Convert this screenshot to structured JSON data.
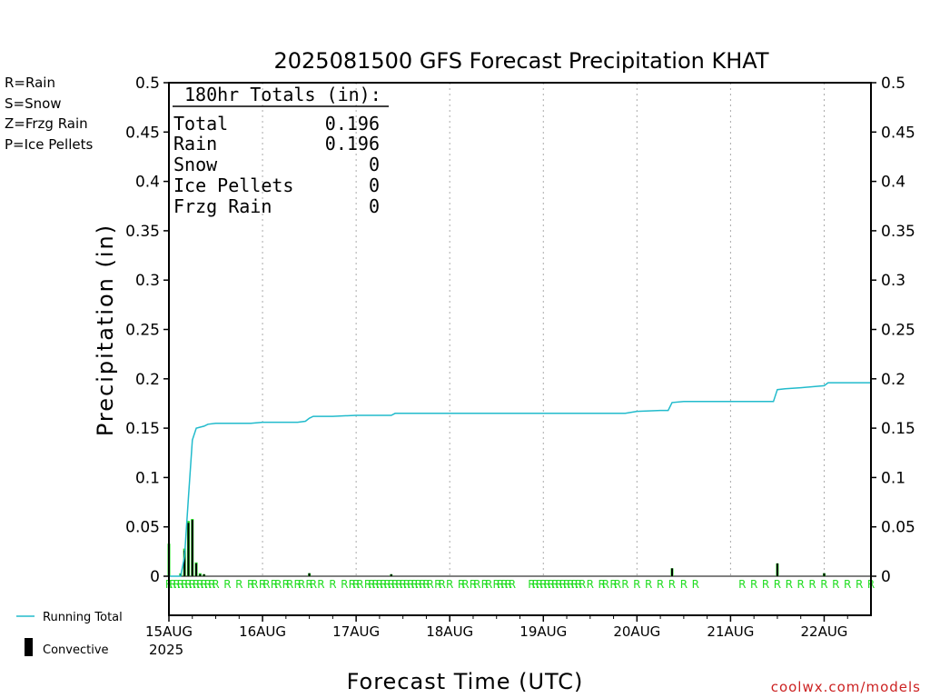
{
  "legend_types": [
    {
      "text": "R=Rain",
      "color": "#22dd22"
    },
    {
      "text": "S=Snow",
      "color": "#3344ff"
    },
    {
      "text": "Z=Frzg Rain",
      "color": "#f08a30"
    },
    {
      "text": "P=Ice Pellets",
      "color": "#ee22aa"
    }
  ],
  "legend_lines": {
    "running_total": "Running Total",
    "convective": "Convective",
    "running_total_color": "#22bbcc",
    "convective_color": "#000000"
  },
  "credit": "coolwx.com/models",
  "year_label": "2025",
  "totals_box": {
    "header": "180hr Totals (in):",
    "rows": [
      {
        "label": "Total",
        "value": "0.196"
      },
      {
        "label": "Rain",
        "value": "0.196"
      },
      {
        "label": "Snow",
        "value": "0"
      },
      {
        "label": "Ice Pellets",
        "value": "0"
      },
      {
        "label": "Frzg Rain",
        "value": "0"
      }
    ]
  },
  "chart_data": {
    "type": "bar",
    "title": "2025081500 GFS Forecast Precipitation KHAT",
    "xlabel": "Forecast Time (UTC)",
    "ylabel": "Precipitation (in)",
    "ylim": [
      0,
      0.5
    ],
    "xlim_hours": [
      0,
      180
    ],
    "y_ticks": [
      "0",
      "0.05",
      "0.1",
      "0.15",
      "0.2",
      "0.25",
      "0.3",
      "0.35",
      "0.4",
      "0.45",
      "0.5"
    ],
    "x_ticks": [
      {
        "label": "15AUG",
        "hour": 0
      },
      {
        "label": "16AUG",
        "hour": 24
      },
      {
        "label": "17AUG",
        "hour": 48
      },
      {
        "label": "18AUG",
        "hour": 72
      },
      {
        "label": "19AUG",
        "hour": 96
      },
      {
        "label": "20AUG",
        "hour": 120
      },
      {
        "label": "21AUG",
        "hour": 144
      },
      {
        "label": "22AUG",
        "hour": 168
      }
    ],
    "grid": true,
    "series": [
      {
        "name": "Running Total",
        "type": "line",
        "color": "#22bbcc",
        "x_hours": [
          0,
          3,
          4,
          5,
          6,
          7,
          8,
          9,
          10,
          12,
          15,
          18,
          21,
          24,
          27,
          30,
          33,
          35,
          36,
          37,
          39,
          42,
          48,
          54,
          57,
          58,
          60,
          66,
          72,
          78,
          84,
          96,
          108,
          117,
          120,
          126,
          128,
          129,
          132,
          138,
          144,
          150,
          155,
          156,
          158,
          162,
          165,
          168,
          169,
          174,
          180
        ],
        "values": [
          0.0,
          0.0,
          0.02,
          0.08,
          0.138,
          0.15,
          0.151,
          0.152,
          0.154,
          0.155,
          0.155,
          0.155,
          0.155,
          0.156,
          0.156,
          0.156,
          0.156,
          0.157,
          0.16,
          0.162,
          0.162,
          0.162,
          0.163,
          0.163,
          0.163,
          0.165,
          0.165,
          0.165,
          0.165,
          0.165,
          0.165,
          0.165,
          0.165,
          0.165,
          0.167,
          0.168,
          0.168,
          0.176,
          0.177,
          0.177,
          0.177,
          0.177,
          0.177,
          0.189,
          0.19,
          0.191,
          0.192,
          0.193,
          0.196,
          0.196,
          0.196
        ]
      },
      {
        "name": "Convective",
        "type": "bar",
        "color": "#000000",
        "x_hours": [
          3,
          4,
          5,
          6,
          7,
          8,
          9,
          36,
          57,
          129,
          156,
          168
        ],
        "values": [
          0.002,
          0.026,
          0.054,
          0.057,
          0.013,
          0.002,
          0.002,
          0.003,
          0.002,
          0.008,
          0.013,
          0.003
        ]
      },
      {
        "name": "Rain",
        "type": "bar",
        "color": "#22dd22",
        "x_hours": [
          0,
          3,
          4,
          5,
          6,
          7,
          8,
          9,
          36,
          57,
          129,
          156,
          168
        ],
        "values": [
          0.033,
          0.003,
          0.028,
          0.056,
          0.058,
          0.014,
          0.003,
          0.002,
          0.003,
          0.002,
          0.008,
          0.013,
          0.003
        ]
      }
    ],
    "rain_marker_hours": [
      0,
      1,
      2,
      3,
      4,
      5,
      6,
      7,
      8,
      9,
      10,
      11,
      12,
      15,
      18,
      21,
      22,
      24,
      25,
      27,
      28,
      30,
      31,
      33,
      34,
      36,
      37,
      39,
      42,
      45,
      47,
      48,
      49,
      51,
      52,
      53,
      54,
      55,
      56,
      57,
      58,
      59,
      60,
      61,
      62,
      63,
      64,
      65,
      66,
      67,
      69,
      70,
      72,
      75,
      76,
      78,
      79,
      81,
      82,
      84,
      85,
      86,
      87,
      88,
      93,
      94,
      95,
      96,
      97,
      98,
      99,
      100,
      101,
      102,
      103,
      104,
      105,
      106,
      108,
      111,
      112,
      114,
      115,
      117,
      120,
      123,
      126,
      129,
      132,
      135,
      147,
      150,
      153,
      156,
      159,
      162,
      165,
      168,
      171,
      174,
      177,
      180
    ]
  }
}
